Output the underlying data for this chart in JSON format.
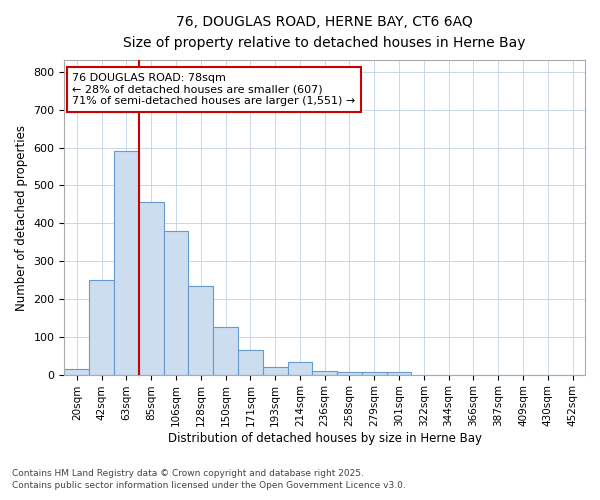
{
  "title1": "76, DOUGLAS ROAD, HERNE BAY, CT6 6AQ",
  "title2": "Size of property relative to detached houses in Herne Bay",
  "xlabel": "Distribution of detached houses by size in Herne Bay",
  "ylabel": "Number of detached properties",
  "bar_labels": [
    "20sqm",
    "42sqm",
    "63sqm",
    "85sqm",
    "106sqm",
    "128sqm",
    "150sqm",
    "171sqm",
    "193sqm",
    "214sqm",
    "236sqm",
    "258sqm",
    "279sqm",
    "301sqm",
    "322sqm",
    "344sqm",
    "366sqm",
    "387sqm",
    "409sqm",
    "430sqm",
    "452sqm"
  ],
  "bar_values": [
    15,
    250,
    590,
    455,
    380,
    235,
    125,
    65,
    20,
    32,
    10,
    8,
    8,
    8,
    0,
    0,
    0,
    0,
    0,
    0,
    0
  ],
  "bar_color": "#ccddf0",
  "bar_edge_color": "#6699cc",
  "red_line_x_label": "85sqm",
  "annotation_title": "76 DOUGLAS ROAD: 78sqm",
  "annotation_line1": "← 28% of detached houses are smaller (607)",
  "annotation_line2": "71% of semi-detached houses are larger (1,551) →",
  "annotation_box_color": "#ffffff",
  "annotation_box_edge": "#cc0000",
  "ylim": [
    0,
    830
  ],
  "yticks": [
    0,
    100,
    200,
    300,
    400,
    500,
    600,
    700,
    800
  ],
  "grid_color": "#c8d8e8",
  "plot_bg_color": "#ffffff",
  "fig_bg_color": "#ffffff",
  "footer1": "Contains HM Land Registry data © Crown copyright and database right 2025.",
  "footer2": "Contains public sector information licensed under the Open Government Licence v3.0."
}
